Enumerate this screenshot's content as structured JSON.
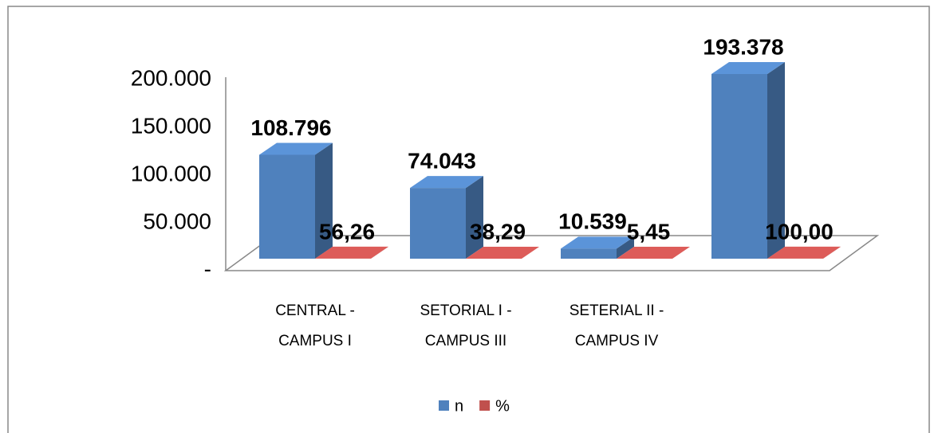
{
  "chart_data": {
    "type": "bar3d",
    "categories": [
      "CENTRAL - CAMPUS I",
      "SETORIAL I - CAMPUS III",
      "SETERIAL II - CAMPUS IV",
      null
    ],
    "series": [
      {
        "name": "n",
        "color": "#4f81bd",
        "values": [
          108796,
          74043,
          10539,
          193378
        ],
        "value_labels": [
          "108.796",
          "74.043",
          "10.539",
          "193.378"
        ]
      },
      {
        "name": "%",
        "color": "#c0504d",
        "values": [
          56.26,
          38.29,
          5.45,
          100
        ],
        "value_labels": [
          "56,26",
          "38,29",
          "5,45",
          "100,00"
        ]
      }
    ],
    "ylim": [
      0,
      200000
    ],
    "yticks": [
      {
        "value": 0,
        "label": "-"
      },
      {
        "value": 50000,
        "label": "50.000"
      },
      {
        "value": 100000,
        "label": "100.000"
      },
      {
        "value": 150000,
        "label": "150.000"
      },
      {
        "value": 200000,
        "label": "200.000"
      }
    ],
    "legend": "bottom"
  }
}
